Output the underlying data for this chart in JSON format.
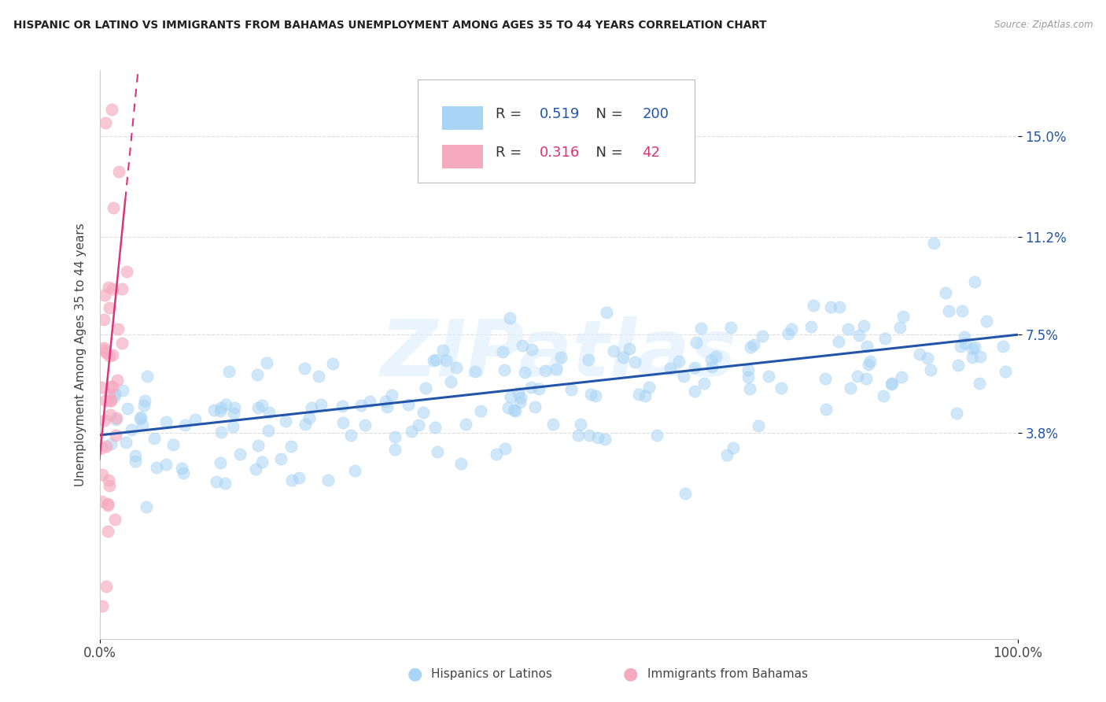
{
  "title": "HISPANIC OR LATINO VS IMMIGRANTS FROM BAHAMAS UNEMPLOYMENT AMONG AGES 35 TO 44 YEARS CORRELATION CHART",
  "source": "Source: ZipAtlas.com",
  "ylabel": "Unemployment Among Ages 35 to 44 years",
  "xlim": [
    0,
    1.0
  ],
  "ylim": [
    -0.04,
    0.175
  ],
  "xtick_labels": [
    "0.0%",
    "100.0%"
  ],
  "ytick_positions": [
    0.038,
    0.075,
    0.112,
    0.15
  ],
  "ytick_labels": [
    "3.8%",
    "7.5%",
    "11.2%",
    "15.0%"
  ],
  "blue_scatter_color": "#a8d4f5",
  "pink_scatter_color": "#f5aac0",
  "blue_line_color": "#2255aa",
  "pink_line_color": "#dd3377",
  "R_blue": "0.519",
  "N_blue": 200,
  "R_pink": "0.316",
  "N_pink": 42,
  "legend_label_blue": "Hispanics or Latinos",
  "legend_label_pink": "Immigrants from Bahamas",
  "watermark": "ZIPatlas",
  "background": "#ffffff",
  "grid_color": "#dddddd",
  "spine_color": "#cccccc"
}
